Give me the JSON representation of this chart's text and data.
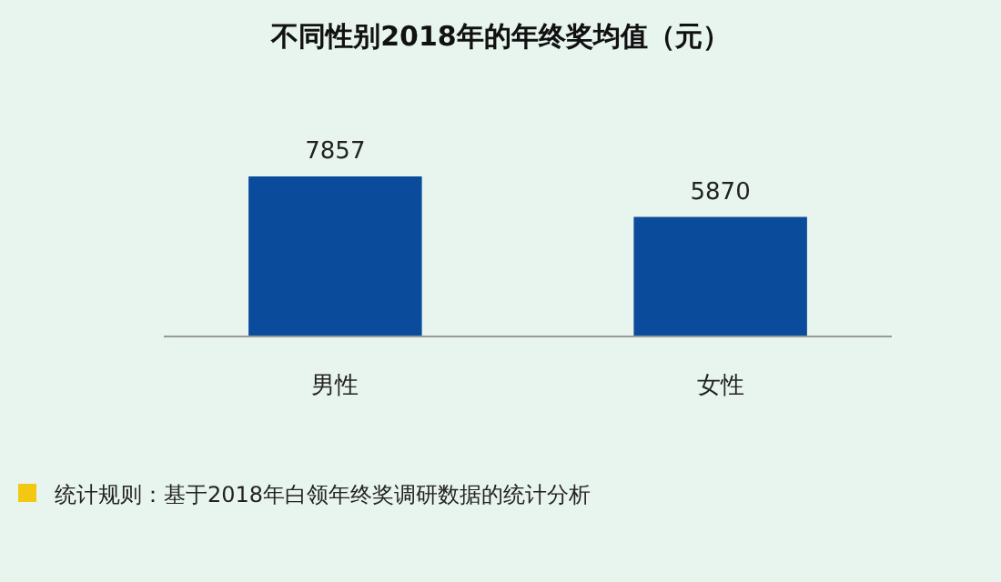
{
  "chart_data": {
    "type": "bar",
    "title": "不同性别2018年的年终奖均值（元）",
    "categories": [
      "男性",
      "女性"
    ],
    "values": [
      7857,
      5870
    ],
    "color": "#0b4b9c",
    "data_labels": true,
    "annotations": [
      "统计规则：基于2018年白领年终奖调研数据的统计分析"
    ]
  }
}
